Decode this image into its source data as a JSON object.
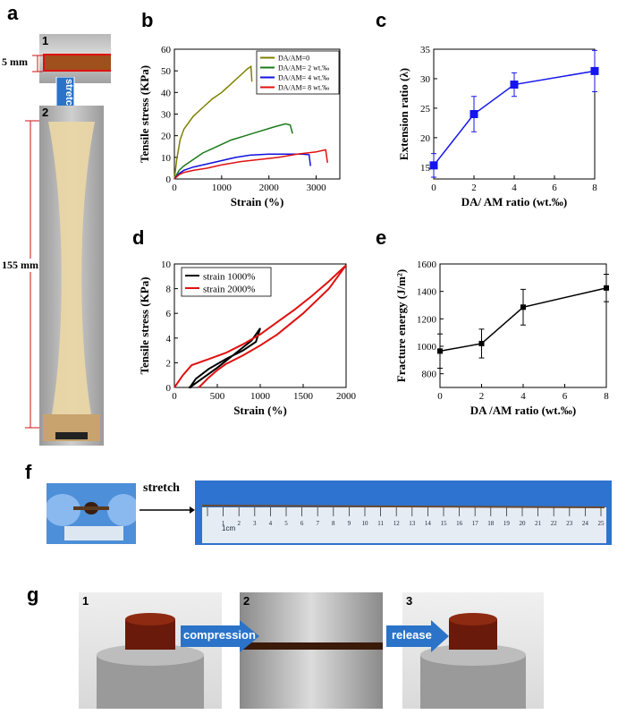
{
  "panels": {
    "a": {
      "label": "a",
      "step1": "1",
      "step2": "2",
      "width_label": "5 mm",
      "stretch_label": "stretch",
      "length_label": "155 mm"
    },
    "b": {
      "label": "b"
    },
    "c": {
      "label": "c"
    },
    "d": {
      "label": "d"
    },
    "e": {
      "label": "e"
    },
    "f": {
      "label": "f",
      "stretch_label": "stretch",
      "ruler_unit": "1cm"
    },
    "g": {
      "label": "g",
      "step1": "1",
      "step2": "2",
      "step3": "3",
      "compression_label": "compression",
      "release_label": "release"
    }
  },
  "colors": {
    "olive": "#808000",
    "green": "#1a7a1a",
    "blue": "#1010e0",
    "red": "#e01010",
    "black": "#000000",
    "square_blue": "#1515ee",
    "arrow_blue": "#2a73c9",
    "glove_blue": "#6fa8e8"
  },
  "chart_data": [
    {
      "id": "b",
      "type": "line",
      "xlabel": "Strain (%)",
      "ylabel": "Tensile stress (KPa)",
      "xlim": [
        0,
        3500
      ],
      "ylim": [
        0,
        60
      ],
      "xticks": [
        0,
        1000,
        2000,
        3000
      ],
      "yticks": [
        0,
        10,
        20,
        30,
        40,
        50,
        60
      ],
      "legend_position": "top-right",
      "series": [
        {
          "name": "DA/AM=0",
          "color": "olive",
          "x": [
            0,
            50,
            120,
            200,
            300,
            400,
            600,
            800,
            1000,
            1200,
            1400,
            1550,
            1620,
            1640
          ],
          "y": [
            0,
            9,
            18,
            23,
            26,
            29,
            33,
            37,
            40,
            44,
            48,
            51,
            52,
            45
          ]
        },
        {
          "name": "DA/AM= 2 wt.‰",
          "color": "green",
          "x": [
            0,
            100,
            200,
            400,
            600,
            800,
            1000,
            1200,
            1500,
            1800,
            2100,
            2350,
            2450,
            2500
          ],
          "y": [
            0,
            4,
            6,
            9,
            12,
            14,
            16,
            18,
            20,
            22,
            24,
            25.5,
            25,
            21
          ]
        },
        {
          "name": "DA/AM= 4 wt.‰",
          "color": "blue",
          "x": [
            0,
            100,
            200,
            400,
            700,
            1000,
            1300,
            1600,
            2000,
            2400,
            2700,
            2850,
            2880
          ],
          "y": [
            0,
            2.5,
            4,
            5.5,
            7,
            8.5,
            10,
            11,
            11.5,
            11.5,
            11.5,
            11.2,
            6
          ]
        },
        {
          "name": "DA/AM= 8 wt.‰",
          "color": "red",
          "x": [
            0,
            100,
            200,
            400,
            700,
            1000,
            1400,
            1800,
            2200,
            2600,
            3000,
            3200,
            3240
          ],
          "y": [
            0,
            2,
            3,
            4,
            5,
            6.5,
            8,
            9,
            10,
            11.5,
            12.5,
            13.5,
            7.5
          ]
        }
      ]
    },
    {
      "id": "c",
      "type": "scatter",
      "xlabel": "DA/ AM ratio (wt.‰)",
      "ylabel": "Extension ratio (λ)",
      "xlim": [
        0,
        8
      ],
      "ylim": [
        13,
        35
      ],
      "xticks": [
        0,
        2,
        4,
        6,
        8
      ],
      "yticks": [
        15,
        20,
        25,
        30,
        35
      ],
      "series": [
        {
          "name": "",
          "color": "square_blue",
          "x": [
            0,
            2,
            4,
            8
          ],
          "y": [
            15.3,
            24,
            29,
            31.3
          ],
          "err": [
            2,
            3,
            2,
            3.5
          ]
        }
      ]
    },
    {
      "id": "d",
      "type": "line",
      "xlabel": "Strain (%)",
      "ylabel": "Tensile stress (KPa)",
      "xlim": [
        0,
        2000
      ],
      "ylim": [
        0,
        10
      ],
      "xticks": [
        0,
        500,
        1000,
        1500,
        2000
      ],
      "yticks": [
        0,
        2,
        4,
        6,
        8,
        10
      ],
      "legend_position": "top-left",
      "series": [
        {
          "name": "strain 1000%",
          "color": "black",
          "x": [
            180,
            250,
            400,
            600,
            800,
            950,
            1000,
            900,
            700,
            500,
            300,
            200,
            170,
            200
          ],
          "y": [
            0,
            0.7,
            1.5,
            2.3,
            3.0,
            3.7,
            4.8,
            3.8,
            2.7,
            1.6,
            0.6,
            0.1,
            0,
            0
          ]
        },
        {
          "name": "strain 2000%",
          "color": "red",
          "x": [
            0,
            100,
            200,
            400,
            600,
            800,
            1000,
            1200,
            1400,
            1600,
            1800,
            2000,
            1800,
            1500,
            1200,
            1000,
            800,
            600,
            500,
            400,
            300,
            280
          ],
          "y": [
            0,
            1.0,
            1.8,
            2.3,
            2.8,
            3.5,
            4.3,
            5.3,
            6.3,
            7.4,
            8.6,
            9.9,
            8.0,
            6.0,
            4.3,
            3.4,
            2.6,
            1.9,
            1.4,
            0.8,
            0.1,
            0
          ]
        }
      ]
    },
    {
      "id": "e",
      "type": "scatter",
      "xlabel": "DA /AM ratio (wt.‰)",
      "ylabel": "Fracture energy (J/m²)",
      "xlim": [
        0,
        8
      ],
      "ylim": [
        700,
        1600
      ],
      "xticks": [
        0,
        2,
        4,
        6,
        8
      ],
      "yticks": [
        800,
        1000,
        1200,
        1400,
        1600
      ],
      "series": [
        {
          "name": "",
          "color": "black",
          "x": [
            0,
            2,
            4,
            8
          ],
          "y": [
            965,
            1020,
            1285,
            1425
          ],
          "err": [
            125,
            105,
            130,
            100
          ]
        }
      ]
    }
  ]
}
